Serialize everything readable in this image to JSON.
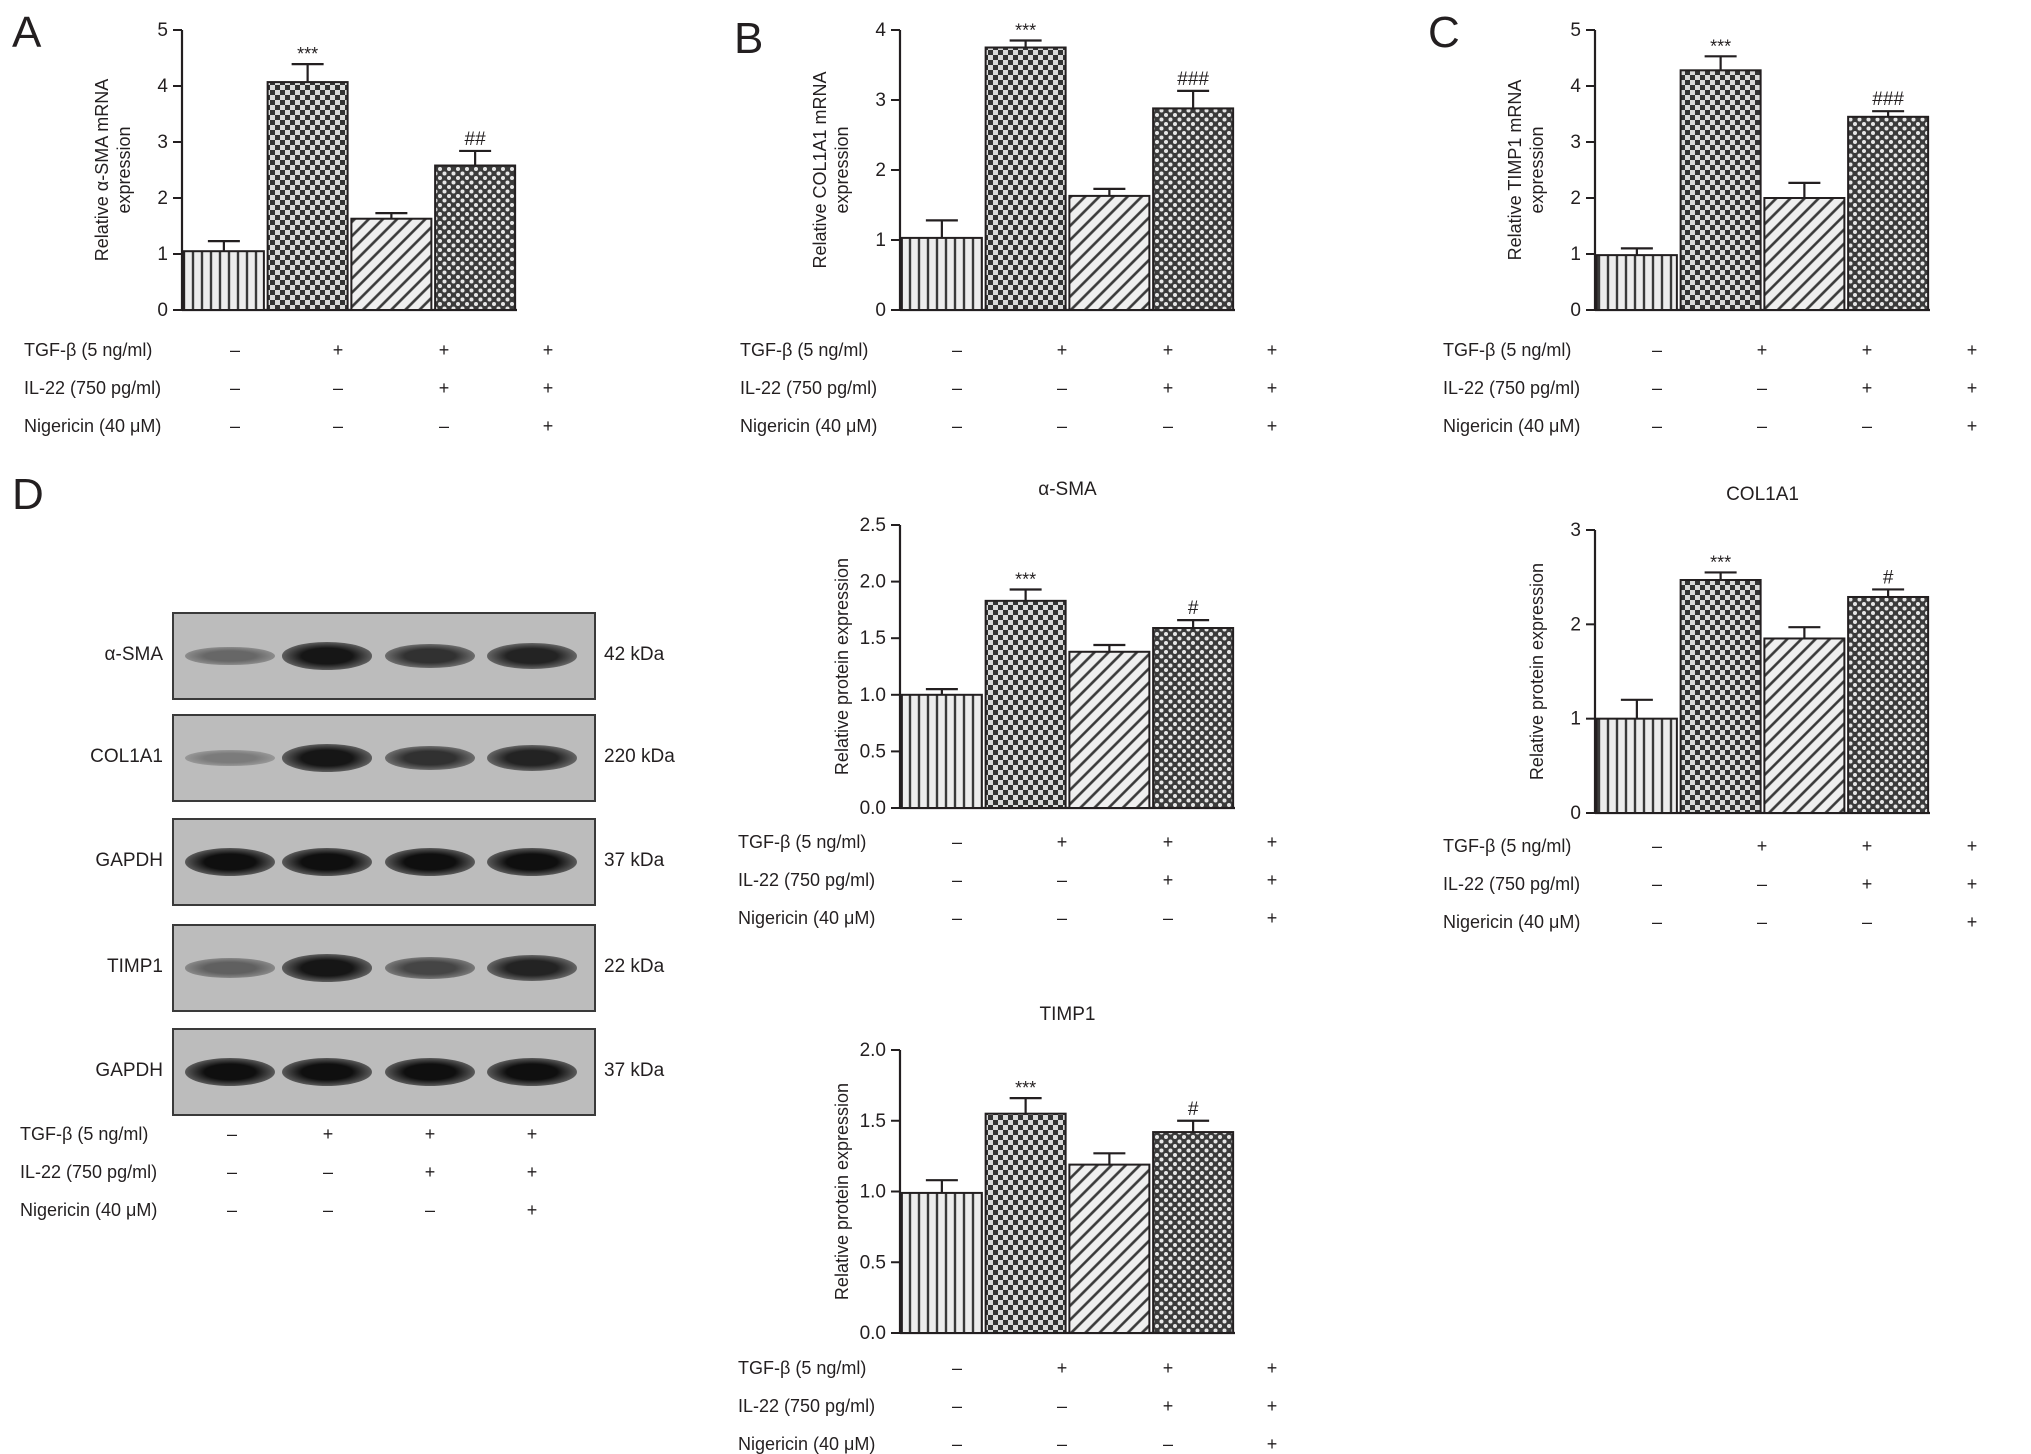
{
  "panel_letters": [
    "A",
    "B",
    "C",
    "D"
  ],
  "treatments": {
    "labels": [
      "TGF-β (5 ng/ml)",
      "IL-22 (750 pg/ml)",
      "Nigericin (40 μM)"
    ],
    "rows": [
      [
        "–",
        "+",
        "+",
        "+"
      ],
      [
        "–",
        "–",
        "+",
        "+"
      ],
      [
        "–",
        "–",
        "–",
        "+"
      ]
    ]
  },
  "western_blot": {
    "rows": [
      {
        "name": "α-SMA",
        "kda": "42 kDa",
        "intensity": [
          0.35,
          0.95,
          0.75,
          0.85
        ]
      },
      {
        "name": "COL1A1",
        "kda": "220 kDa",
        "intensity": [
          0.2,
          0.95,
          0.75,
          0.85
        ]
      },
      {
        "name": "GAPDH",
        "kda": "37 kDa",
        "intensity": [
          1.0,
          1.0,
          1.0,
          1.0
        ]
      },
      {
        "name": "TIMP1",
        "kda": "22 kDa",
        "intensity": [
          0.4,
          0.95,
          0.6,
          0.85
        ]
      },
      {
        "name": "GAPDH",
        "kda": "37 kDa",
        "intensity": [
          1.0,
          1.0,
          1.0,
          1.0
        ]
      }
    ]
  },
  "chart_data": [
    {
      "panel": "A",
      "type": "bar",
      "title": "",
      "ylabel": "Relative α-SMA mRNA expression",
      "ylabel_lines": [
        "Relative α-SMA mRNA",
        "expression"
      ],
      "ylim": [
        0,
        5
      ],
      "yticks": [
        "0",
        "1",
        "2",
        "3",
        "4",
        "5"
      ],
      "values": [
        1.05,
        4.07,
        1.63,
        2.58
      ],
      "errors": [
        0.18,
        0.32,
        0.1,
        0.26
      ],
      "annotations": [
        "",
        "***",
        "",
        "##"
      ]
    },
    {
      "panel": "B",
      "type": "bar",
      "title": "",
      "ylabel": "Relative COL1A1 mRNA expression",
      "ylabel_lines": [
        "Relative COL1A1 mRNA",
        "expression"
      ],
      "ylim": [
        0,
        4
      ],
      "yticks": [
        "0",
        "1",
        "2",
        "3",
        "4"
      ],
      "values": [
        1.03,
        3.75,
        1.63,
        2.88
      ],
      "errors": [
        0.25,
        0.1,
        0.1,
        0.25
      ],
      "annotations": [
        "",
        "***",
        "",
        "###"
      ]
    },
    {
      "panel": "C",
      "type": "bar",
      "title": "",
      "ylabel": "Relative TIMP1 mRNA expression",
      "ylabel_lines": [
        "Relative TIMP1 mRNA",
        "expression"
      ],
      "ylim": [
        0,
        5
      ],
      "yticks": [
        "0",
        "1",
        "2",
        "3",
        "4",
        "5"
      ],
      "values": [
        0.98,
        4.28,
        2.0,
        3.45
      ],
      "errors": [
        0.12,
        0.25,
        0.27,
        0.1
      ],
      "annotations": [
        "",
        "***",
        "",
        "###"
      ]
    },
    {
      "panel": "D",
      "type": "bar",
      "title": "α-SMA",
      "ylabel": "Relative protein expression",
      "ylabel_lines": [
        "Relative protein expression"
      ],
      "ylim": [
        0,
        2.5
      ],
      "yticks": [
        "0.0",
        "0.5",
        "1.0",
        "1.5",
        "2.0",
        "2.5"
      ],
      "values": [
        1.0,
        1.83,
        1.38,
        1.59
      ],
      "errors": [
        0.05,
        0.1,
        0.06,
        0.07
      ],
      "annotations": [
        "",
        "***",
        "",
        "#"
      ]
    },
    {
      "panel": "D",
      "type": "bar",
      "title": "COL1A1",
      "ylabel": "Relative protein expression",
      "ylabel_lines": [
        "Relative protein expression"
      ],
      "ylim": [
        0,
        3
      ],
      "yticks": [
        "0",
        "1",
        "2",
        "3"
      ],
      "values": [
        1.0,
        2.47,
        1.85,
        2.29
      ],
      "errors": [
        0.2,
        0.08,
        0.12,
        0.08
      ],
      "annotations": [
        "",
        "***",
        "",
        "#"
      ]
    },
    {
      "panel": "D",
      "type": "bar",
      "title": "TIMP1",
      "ylabel": "Relative protein expression",
      "ylabel_lines": [
        "Relative protein expression"
      ],
      "ylim": [
        0,
        2
      ],
      "yticks": [
        "0.0",
        "0.5",
        "1.0",
        "1.5",
        "2.0"
      ],
      "values": [
        0.99,
        1.55,
        1.19,
        1.42
      ],
      "errors": [
        0.09,
        0.11,
        0.08,
        0.08
      ],
      "annotations": [
        "",
        "***",
        "",
        "#"
      ]
    }
  ]
}
